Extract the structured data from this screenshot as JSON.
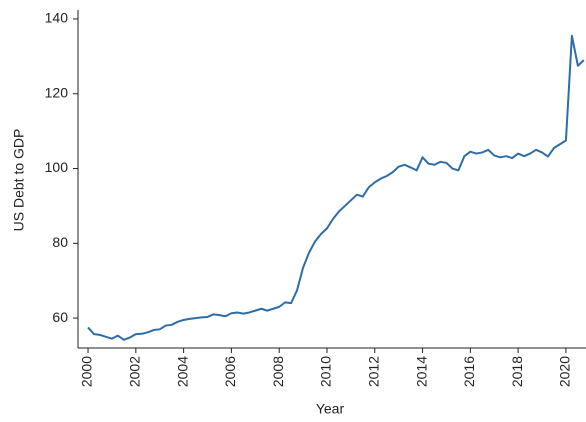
{
  "chart_data": {
    "type": "line",
    "x_label": "Year",
    "y_label": "US Debt to GDP",
    "x": [
      2000,
      2000.25,
      2000.5,
      2000.75,
      2001,
      2001.25,
      2001.5,
      2001.75,
      2002,
      2002.25,
      2002.5,
      2002.75,
      2003,
      2003.25,
      2003.5,
      2003.75,
      2004,
      2004.25,
      2004.5,
      2004.75,
      2005,
      2005.25,
      2005.5,
      2005.75,
      2006,
      2006.25,
      2006.5,
      2006.75,
      2007,
      2007.25,
      2007.5,
      2007.75,
      2008,
      2008.25,
      2008.5,
      2008.75,
      2009,
      2009.25,
      2009.5,
      2009.75,
      2010,
      2010.25,
      2010.5,
      2010.75,
      2011,
      2011.25,
      2011.5,
      2011.75,
      2012,
      2012.25,
      2012.5,
      2012.75,
      2013,
      2013.25,
      2013.5,
      2013.75,
      2014,
      2014.25,
      2014.5,
      2014.75,
      2015,
      2015.25,
      2015.5,
      2015.75,
      2016,
      2016.25,
      2016.5,
      2016.75,
      2017,
      2017.25,
      2017.5,
      2017.75,
      2018,
      2018.25,
      2018.5,
      2018.75,
      2019,
      2019.25,
      2019.5,
      2019.75,
      2020,
      2020.25,
      2020.5,
      2020.75
    ],
    "series": [
      {
        "name": "US Debt to GDP",
        "color": "#2e6da8",
        "values": [
          57.5,
          55.7,
          55.5,
          55,
          54.5,
          55.3,
          54.2,
          54.8,
          55.7,
          55.8,
          56.2,
          56.8,
          57,
          58,
          58.2,
          59,
          59.5,
          59.8,
          60,
          60.2,
          60.3,
          61,
          60.8,
          60.5,
          61.3,
          61.5,
          61.2,
          61.5,
          62,
          62.5,
          62,
          62.5,
          63,
          64.2,
          64,
          67.5,
          73.5,
          77.5,
          80.5,
          82.5,
          84,
          86.5,
          88.5,
          90,
          91.5,
          93,
          92.5,
          95,
          96.3,
          97.3,
          98,
          99,
          100.5,
          101,
          100.3,
          99.5,
          103,
          101.3,
          101,
          101.8,
          101.5,
          100,
          99.5,
          103.3,
          104.5,
          104,
          104.3,
          105,
          103.5,
          103,
          103.3,
          102.8,
          104,
          103.3,
          104,
          105,
          104.3,
          103.2,
          105.5,
          106.5,
          107.5,
          135.5,
          127.5,
          129
        ]
      }
    ],
    "xlim": [
      1999.58,
      2020.84
    ],
    "xticks": [
      2000,
      2002,
      2004,
      2006,
      2008,
      2010,
      2012,
      2014,
      2016,
      2018,
      2020
    ],
    "ylim": [
      52,
      142.4
    ],
    "yticks": [
      60,
      80,
      100,
      120,
      140
    ],
    "grid": false
  }
}
